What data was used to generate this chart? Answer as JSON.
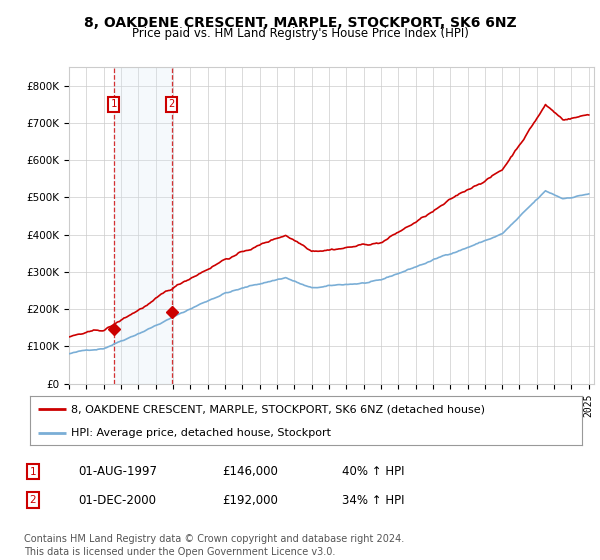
{
  "title": "8, OAKDENE CRESCENT, MARPLE, STOCKPORT, SK6 6NZ",
  "subtitle": "Price paid vs. HM Land Registry's House Price Index (HPI)",
  "property_label": "8, OAKDENE CRESCENT, MARPLE, STOCKPORT, SK6 6NZ (detached house)",
  "hpi_label": "HPI: Average price, detached house, Stockport",
  "footer": "Contains HM Land Registry data © Crown copyright and database right 2024.\nThis data is licensed under the Open Government Licence v3.0.",
  "sales": [
    {
      "label": "1",
      "date": "01-AUG-1997",
      "price": 146000,
      "pct": "40%",
      "direction": "↑"
    },
    {
      "label": "2",
      "date": "01-DEC-2000",
      "price": 192000,
      "pct": "34%",
      "direction": "↑"
    }
  ],
  "ylim": [
    0,
    850000
  ],
  "yticks": [
    0,
    100000,
    200000,
    300000,
    400000,
    500000,
    600000,
    700000,
    800000
  ],
  "ytick_labels": [
    "£0",
    "£100K",
    "£200K",
    "£300K",
    "£400K",
    "£500K",
    "£600K",
    "£700K",
    "£800K"
  ],
  "property_color": "#cc0000",
  "hpi_color": "#7aaed6",
  "shade_color": "#d8e8f5",
  "marker_box_color": "#cc0000",
  "background_color": "#ffffff",
  "grid_color": "#cccccc",
  "title_fontsize": 10,
  "subtitle_fontsize": 8.5,
  "tick_fontsize": 7.5,
  "legend_fontsize": 8,
  "footer_fontsize": 7
}
